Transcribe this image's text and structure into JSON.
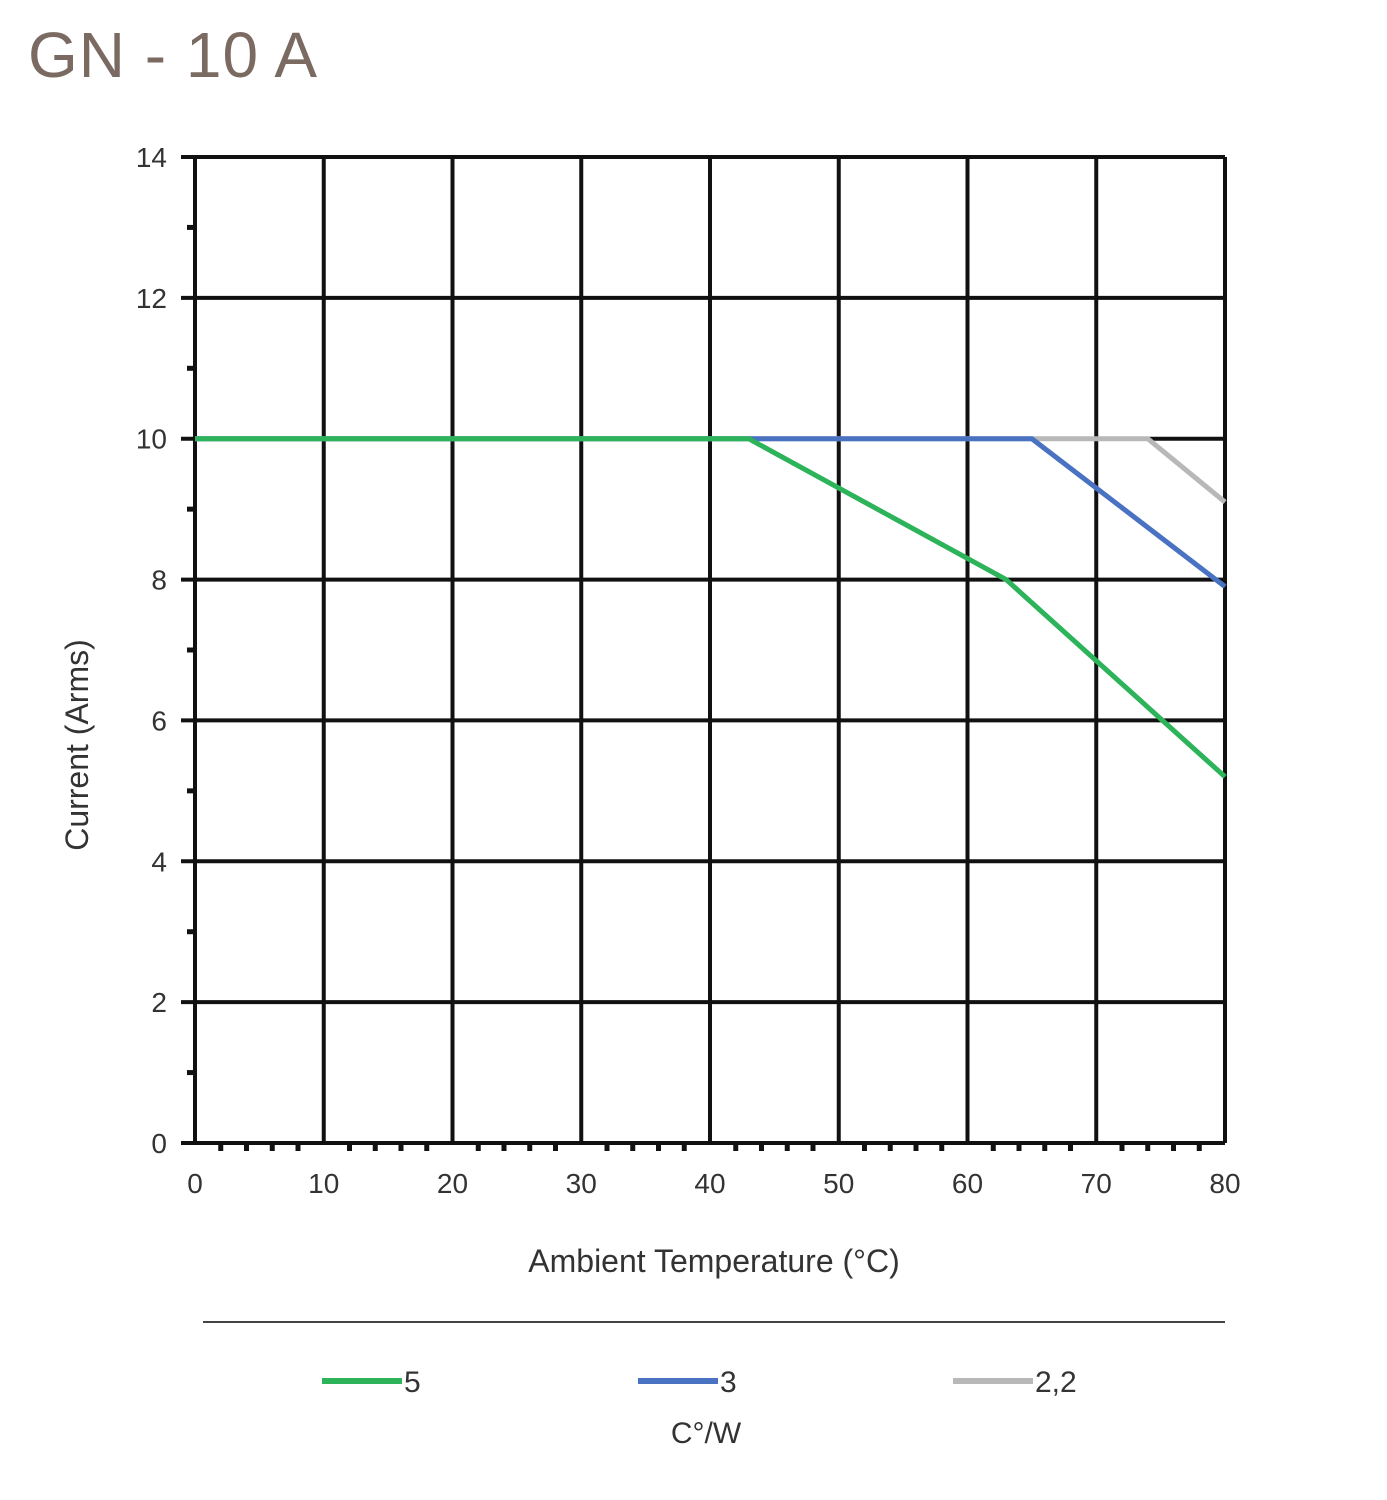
{
  "title": "GN - 10 A",
  "chart_data": {
    "type": "line",
    "title": "GN - 10 A",
    "xlabel": "Ambient Temperature (°C)",
    "ylabel": "Current (Arms)",
    "xlim": [
      0,
      80
    ],
    "ylim": [
      0,
      14
    ],
    "x_ticks": [
      0,
      10,
      20,
      30,
      40,
      50,
      60,
      70,
      80
    ],
    "y_ticks": [
      0,
      2,
      4,
      6,
      8,
      10,
      12,
      14
    ],
    "grid": true,
    "legend_position": "bottom",
    "legend_title": "C°/W",
    "series": [
      {
        "name": "5",
        "color": "#2db35a",
        "points": [
          [
            0,
            10
          ],
          [
            43,
            10
          ],
          [
            63,
            8
          ],
          [
            80,
            5.2
          ]
        ]
      },
      {
        "name": "3",
        "color": "#4a72c2",
        "points": [
          [
            0,
            10
          ],
          [
            65,
            10
          ],
          [
            80,
            7.9
          ]
        ]
      },
      {
        "name": "2,2",
        "color": "#b8b8b8",
        "points": [
          [
            0,
            10
          ],
          [
            74,
            10
          ],
          [
            80,
            9.1
          ]
        ]
      }
    ]
  }
}
